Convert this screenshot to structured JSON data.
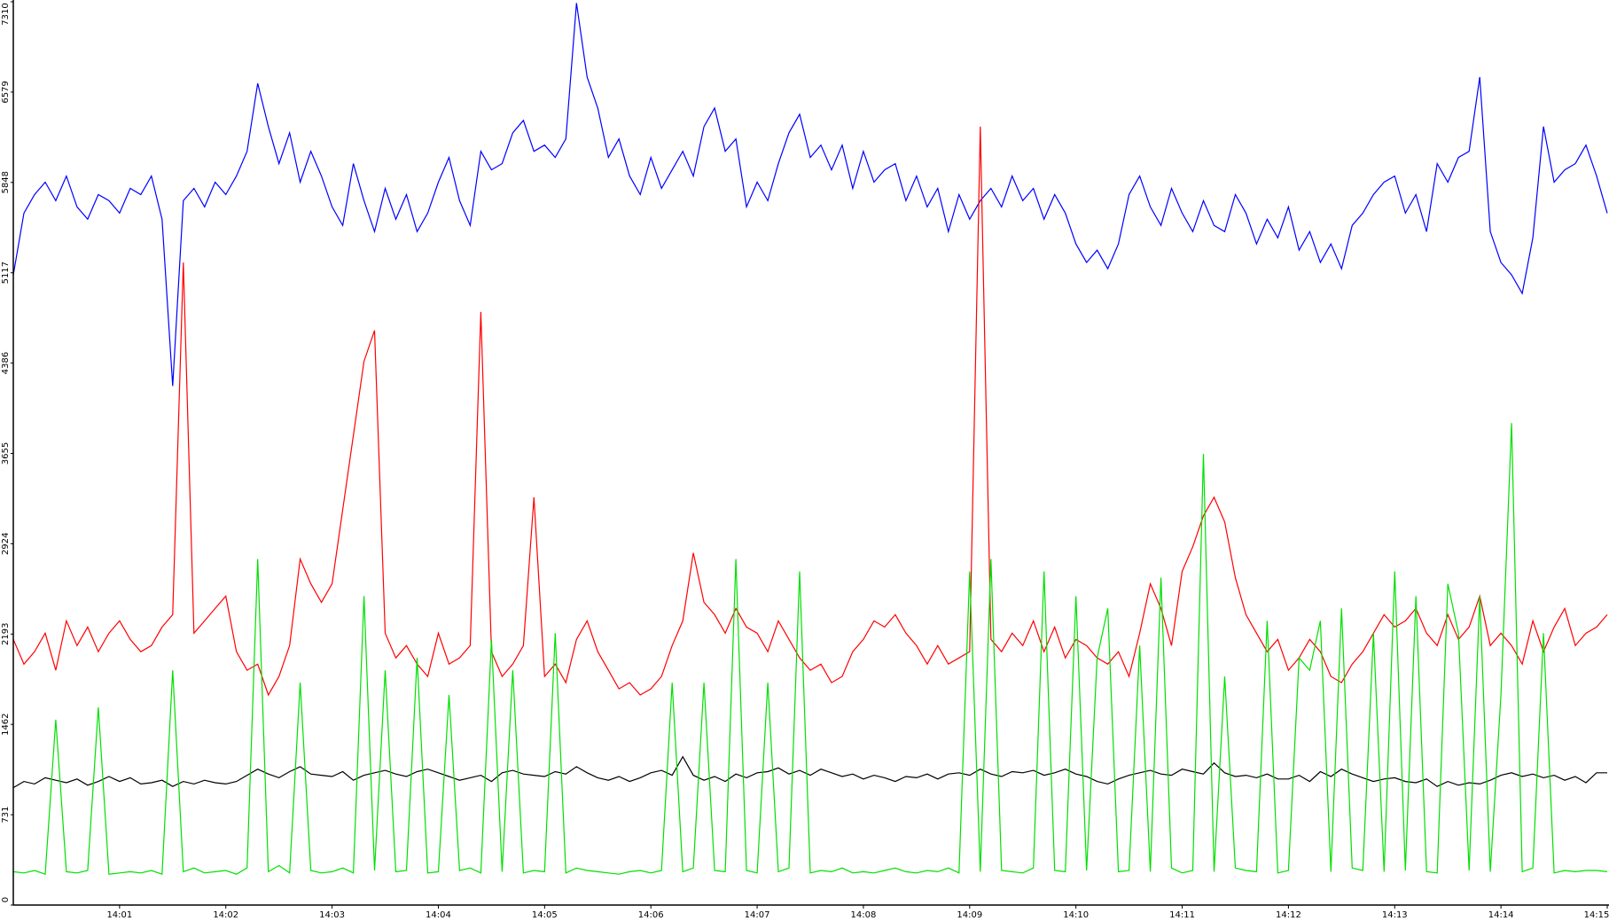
{
  "chart_data": {
    "type": "line",
    "x": [
      0,
      6,
      12,
      18,
      24,
      30,
      36,
      42,
      48,
      54,
      60,
      66,
      72,
      78,
      84,
      90,
      96,
      102,
      108,
      114,
      120,
      126,
      132,
      138,
      144,
      150,
      156,
      162,
      168,
      174,
      180,
      186,
      192,
      198,
      204,
      210,
      216,
      222,
      228,
      234,
      240,
      246,
      252,
      258,
      264,
      270,
      276,
      282,
      288,
      294,
      300,
      306,
      312,
      318,
      324,
      330,
      336,
      342,
      348,
      354,
      360,
      366,
      372,
      378,
      384,
      390,
      396,
      402,
      408,
      414,
      420,
      426,
      432,
      438,
      444,
      450,
      456,
      462,
      468,
      474,
      480,
      486,
      492,
      498,
      504,
      510,
      516,
      522,
      528,
      534,
      540,
      546,
      552,
      558,
      564,
      570,
      576,
      582,
      588,
      594,
      600,
      606,
      612,
      618,
      624,
      630,
      636,
      642,
      648,
      654,
      660,
      666,
      672,
      678,
      684,
      690,
      696,
      702,
      708,
      714,
      720,
      726,
      732,
      738,
      744,
      750,
      756,
      762,
      768,
      774,
      780,
      786,
      792,
      798,
      804,
      810,
      816,
      822,
      828,
      834,
      840,
      846,
      852,
      858,
      864,
      870,
      876,
      882,
      888,
      894,
      900
    ],
    "xlim": [
      0,
      900
    ],
    "xticks": [
      {
        "value": 60,
        "label": "14:01"
      },
      {
        "value": 120,
        "label": "14:02"
      },
      {
        "value": 180,
        "label": "14:03"
      },
      {
        "value": 240,
        "label": "14:04"
      },
      {
        "value": 300,
        "label": "14:05"
      },
      {
        "value": 360,
        "label": "14:06"
      },
      {
        "value": 420,
        "label": "14:07"
      },
      {
        "value": 480,
        "label": "14:08"
      },
      {
        "value": 540,
        "label": "14:09"
      },
      {
        "value": 600,
        "label": "14:10"
      },
      {
        "value": 660,
        "label": "14:11"
      },
      {
        "value": 720,
        "label": "14:12"
      },
      {
        "value": 780,
        "label": "14:13"
      },
      {
        "value": 840,
        "label": "14:14"
      },
      {
        "value": 900,
        "label": "14:15"
      }
    ],
    "ylim": [
      0,
      7310
    ],
    "yticks": [
      0,
      731,
      1462,
      2193,
      2924,
      3655,
      4386,
      5117,
      5848,
      6579,
      7310
    ],
    "series": [
      {
        "color": "#0000ff",
        "values": [
          5100,
          5600,
          5750,
          5850,
          5700,
          5900,
          5650,
          5550,
          5750,
          5700,
          5600,
          5800,
          5750,
          5900,
          5550,
          4200,
          5700,
          5800,
          5650,
          5850,
          5750,
          5900,
          6100,
          6650,
          6300,
          6000,
          6250,
          5850,
          6100,
          5900,
          5650,
          5500,
          6000,
          5700,
          5450,
          5800,
          5550,
          5750,
          5450,
          5600,
          5850,
          6050,
          5700,
          5500,
          6100,
          5950,
          6000,
          6250,
          6350,
          6100,
          6150,
          6050,
          6200,
          7300,
          6700,
          6450,
          6050,
          6200,
          5900,
          5750,
          6050,
          5800,
          5950,
          6100,
          5900,
          6300,
          6450,
          6100,
          6200,
          5650,
          5850,
          5700,
          6000,
          6250,
          6400,
          6050,
          6150,
          5950,
          6150,
          5800,
          6100,
          5850,
          5950,
          6000,
          5700,
          5900,
          5650,
          5800,
          5450,
          5750,
          5550,
          5700,
          5800,
          5650,
          5900,
          5700,
          5800,
          5550,
          5750,
          5600,
          5350,
          5200,
          5300,
          5150,
          5350,
          5750,
          5900,
          5650,
          5500,
          5800,
          5600,
          5450,
          5700,
          5500,
          5450,
          5750,
          5600,
          5350,
          5550,
          5400,
          5650,
          5300,
          5450,
          5200,
          5350,
          5150,
          5500,
          5600,
          5750,
          5850,
          5900,
          5600,
          5750,
          5450,
          6000,
          5850,
          6050,
          6100,
          6700,
          5450,
          5200,
          5100,
          4950,
          5400,
          6300,
          5850,
          5950,
          6000,
          6150,
          5900,
          5600
        ]
      },
      {
        "color": "#ff0000",
        "values": [
          2150,
          1950,
          2050,
          2200,
          1900,
          2300,
          2100,
          2250,
          2050,
          2200,
          2300,
          2150,
          2050,
          2100,
          2250,
          2350,
          5200,
          2200,
          2300,
          2400,
          2500,
          2050,
          1900,
          1950,
          1700,
          1850,
          2100,
          2800,
          2600,
          2450,
          2600,
          3200,
          3800,
          4400,
          4650,
          2200,
          2000,
          2100,
          1950,
          1850,
          2200,
          1950,
          2000,
          2100,
          4800,
          2050,
          1850,
          1950,
          2100,
          3300,
          1850,
          1950,
          1800,
          2150,
          2300,
          2050,
          1900,
          1750,
          1800,
          1700,
          1750,
          1850,
          2100,
          2300,
          2850,
          2450,
          2350,
          2200,
          2400,
          2250,
          2200,
          2050,
          2300,
          2150,
          2000,
          1900,
          1950,
          1800,
          1850,
          2050,
          2150,
          2300,
          2250,
          2350,
          2200,
          2100,
          1950,
          2100,
          1950,
          2000,
          2050,
          6300,
          2150,
          2050,
          2200,
          2100,
          2300,
          2050,
          2250,
          2000,
          2150,
          2100,
          2000,
          1950,
          2050,
          1850,
          2200,
          2600,
          2400,
          2100,
          2700,
          2900,
          3150,
          3300,
          3100,
          2650,
          2350,
          2200,
          2050,
          2150,
          1900,
          2000,
          2150,
          2050,
          1850,
          1800,
          1950,
          2050,
          2200,
          2350,
          2250,
          2300,
          2400,
          2200,
          2100,
          2350,
          2150,
          2250,
          2500,
          2100,
          2200,
          2100,
          1950,
          2300,
          2050,
          2250,
          2400,
          2100,
          2200,
          2250,
          2350
        ]
      },
      {
        "color": "#000000",
        "values": [
          950,
          1000,
          980,
          1030,
          1010,
          990,
          1020,
          970,
          1000,
          1040,
          1000,
          1030,
          980,
          990,
          1010,
          960,
          1000,
          980,
          1010,
          990,
          980,
          1000,
          1050,
          1100,
          1060,
          1030,
          1080,
          1120,
          1060,
          1050,
          1040,
          1080,
          1010,
          1050,
          1070,
          1090,
          1060,
          1040,
          1080,
          1100,
          1070,
          1040,
          1010,
          1030,
          1050,
          1000,
          1070,
          1090,
          1060,
          1050,
          1040,
          1080,
          1060,
          1120,
          1070,
          1030,
          1010,
          1040,
          1000,
          1030,
          1070,
          1090,
          1050,
          1200,
          1050,
          1010,
          1040,
          1000,
          1060,
          1030,
          1070,
          1080,
          1110,
          1060,
          1090,
          1050,
          1100,
          1070,
          1040,
          1060,
          1020,
          1050,
          1030,
          1000,
          1040,
          1030,
          1060,
          1020,
          1060,
          1070,
          1050,
          1100,
          1060,
          1040,
          1080,
          1070,
          1090,
          1050,
          1070,
          1100,
          1060,
          1040,
          1000,
          980,
          1020,
          1050,
          1070,
          1090,
          1060,
          1050,
          1100,
          1080,
          1060,
          1150,
          1070,
          1040,
          1050,
          1030,
          1060,
          1020,
          1020,
          1050,
          1000,
          1080,
          1040,
          1100,
          1060,
          1030,
          1000,
          1020,
          1030,
          1000,
          990,
          1020,
          960,
          1000,
          970,
          990,
          980,
          1010,
          1050,
          1070,
          1040,
          1060,
          1030,
          1050,
          1010,
          1040,
          990,
          1070,
          1070
        ]
      },
      {
        "color": "#00e000",
        "values": [
          270,
          260,
          280,
          250,
          1500,
          270,
          260,
          280,
          1600,
          250,
          260,
          270,
          260,
          280,
          250,
          1900,
          270,
          300,
          260,
          270,
          280,
          250,
          300,
          2800,
          270,
          320,
          260,
          1800,
          280,
          260,
          270,
          300,
          260,
          2500,
          280,
          1900,
          270,
          280,
          2000,
          260,
          270,
          1700,
          280,
          300,
          260,
          2150,
          270,
          1900,
          260,
          280,
          270,
          2200,
          260,
          300,
          280,
          270,
          260,
          250,
          270,
          280,
          260,
          280,
          1800,
          270,
          300,
          1800,
          280,
          270,
          2800,
          280,
          260,
          1800,
          270,
          300,
          2700,
          260,
          280,
          270,
          300,
          260,
          270,
          260,
          280,
          300,
          270,
          260,
          280,
          270,
          300,
          260,
          2700,
          270,
          2800,
          280,
          270,
          260,
          300,
          2700,
          280,
          270,
          2500,
          280,
          2000,
          2400,
          270,
          280,
          2100,
          270,
          2650,
          300,
          260,
          280,
          3650,
          270,
          1850,
          300,
          280,
          270,
          2300,
          260,
          280,
          2000,
          1900,
          2300,
          270,
          2400,
          300,
          280,
          2200,
          270,
          2700,
          280,
          2500,
          270,
          260,
          2600,
          2200,
          280,
          2500,
          270,
          1700,
          3900,
          270,
          300,
          2200,
          260,
          280,
          270,
          280,
          280,
          270
        ]
      }
    ]
  }
}
